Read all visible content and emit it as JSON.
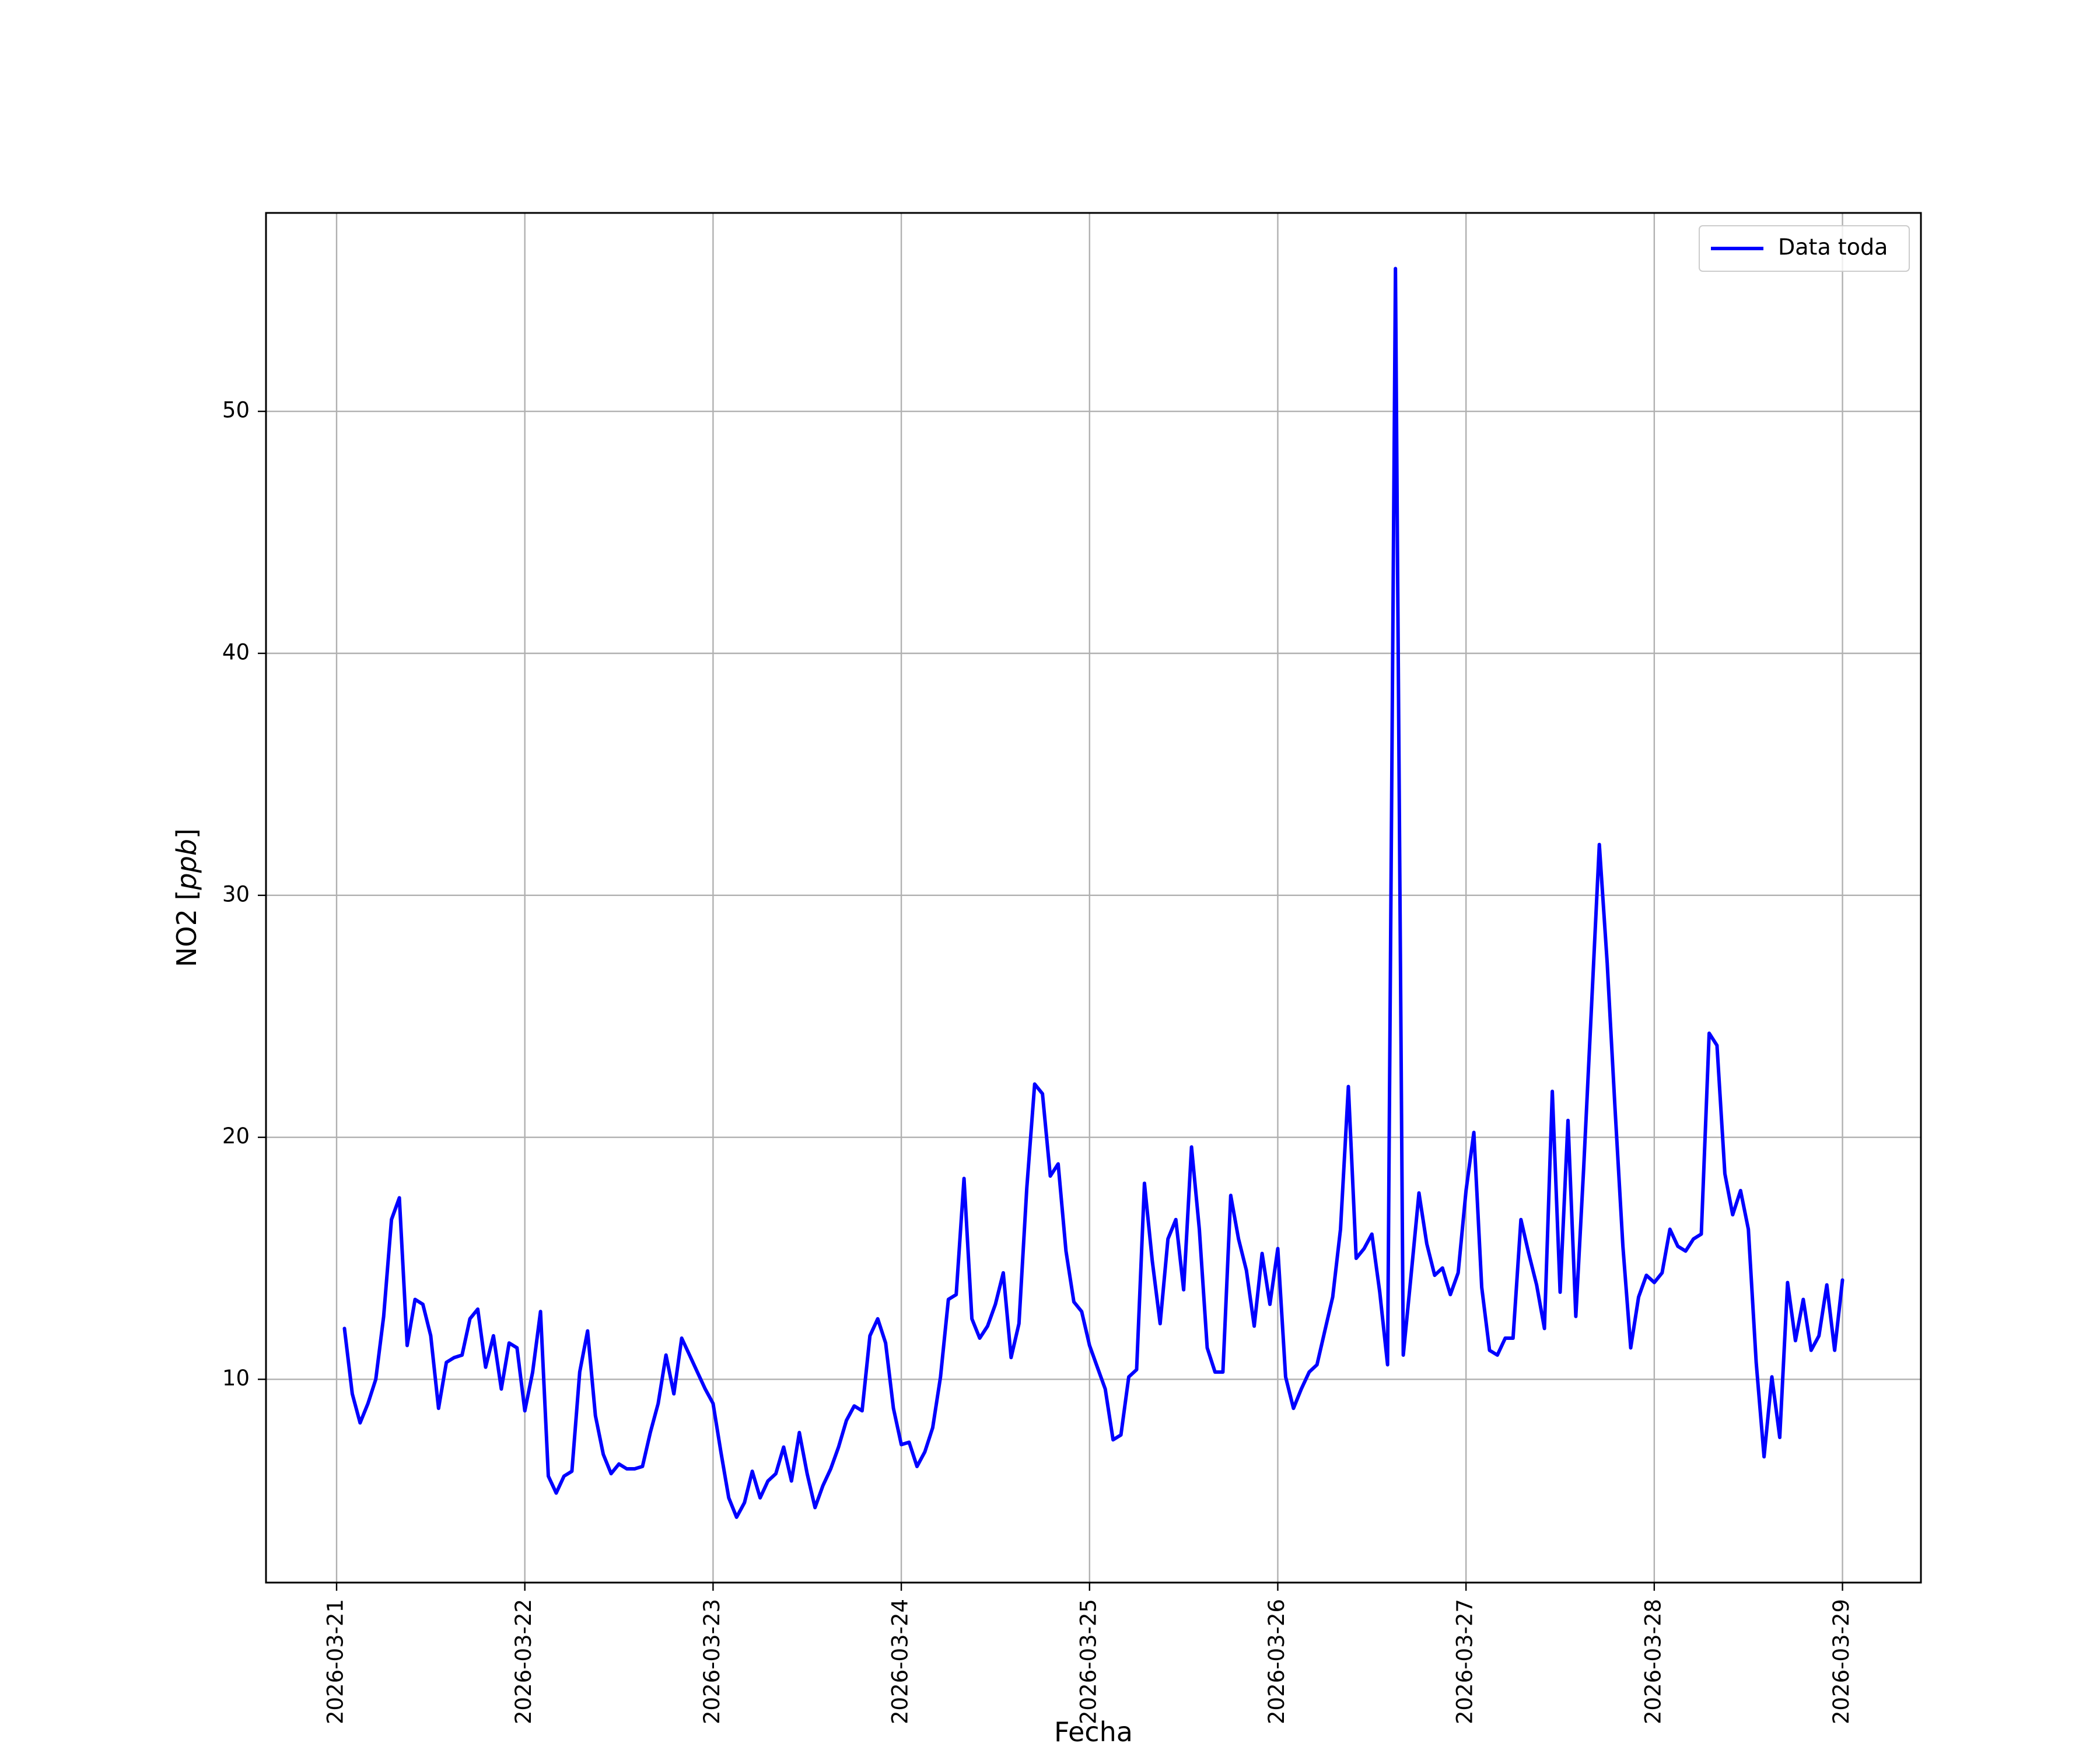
{
  "chart_data": {
    "type": "line",
    "title": "",
    "xlabel": "Fecha",
    "ylabel_prefix": "NO2 [",
    "ylabel_unit": "ppb",
    "ylabel_suffix": "]",
    "x_tick_labels": [
      "2026-03-21",
      "2026-03-22",
      "2026-03-23",
      "2026-03-24",
      "2026-03-25",
      "2026-03-26",
      "2026-03-27",
      "2026-03-28",
      "2026-03-29"
    ],
    "y_ticks": [
      10,
      20,
      30,
      40,
      50
    ],
    "xlim": [
      "2026-03-20 15:00",
      "2026-03-29 10:00"
    ],
    "ylim": [
      1.6,
      58.2
    ],
    "grid": true,
    "legend_position": "top-right",
    "series": [
      {
        "name": "Data toda",
        "color": "#0000ff",
        "x_start": "2026-03-21 01:00",
        "x_step_hours": 1,
        "values": [
          12.1,
          9.4,
          8.2,
          9.0,
          10.0,
          12.6,
          16.6,
          17.5,
          11.4,
          13.3,
          13.1,
          11.8,
          8.8,
          10.7,
          10.9,
          11.0,
          12.5,
          12.9,
          10.5,
          11.8,
          9.6,
          11.5,
          11.3,
          8.7,
          10.3,
          12.8,
          6.0,
          5.3,
          6.0,
          6.2,
          10.3,
          12.0,
          8.5,
          6.9,
          6.1,
          6.5,
          6.3,
          6.3,
          6.4,
          7.8,
          9.0,
          11.0,
          9.4,
          11.7,
          11.0,
          10.3,
          9.6,
          9.0,
          7.0,
          5.1,
          4.3,
          4.9,
          6.2,
          5.1,
          5.8,
          6.1,
          7.2,
          5.8,
          7.8,
          6.1,
          4.7,
          5.6,
          6.3,
          7.2,
          8.3,
          8.9,
          8.7,
          11.8,
          12.5,
          11.5,
          8.8,
          7.3,
          7.4,
          6.4,
          7.0,
          8.0,
          10.1,
          13.3,
          13.5,
          18.3,
          12.5,
          11.7,
          12.2,
          13.1,
          14.4,
          10.9,
          12.3,
          17.9,
          22.2,
          21.8,
          18.4,
          18.9,
          15.3,
          13.2,
          12.8,
          11.4,
          10.5,
          9.6,
          7.5,
          7.7,
          10.1,
          10.4,
          18.1,
          14.9,
          12.3,
          15.8,
          16.6,
          13.7,
          19.6,
          16.2,
          11.3,
          10.3,
          10.3,
          17.6,
          15.8,
          14.5,
          12.2,
          15.2,
          13.1,
          15.4,
          10.1,
          8.8,
          9.6,
          10.3,
          10.6,
          12.0,
          13.4,
          16.2,
          22.1,
          15.0,
          15.4,
          16.0,
          13.6,
          10.6,
          55.9,
          11.0,
          14.3,
          17.7,
          15.6,
          14.3,
          14.6,
          13.5,
          14.4,
          17.8,
          20.2,
          13.8,
          11.2,
          11.0,
          11.7,
          11.7,
          16.6,
          15.2,
          13.9,
          12.1,
          21.9,
          13.6,
          20.7,
          12.6,
          18.7,
          25.4,
          32.1,
          27.2,
          21.2,
          15.5,
          11.3,
          13.4,
          14.3,
          14.0,
          14.4,
          16.2,
          15.5,
          15.3,
          15.8,
          16.0,
          24.3,
          23.8,
          18.5,
          16.8,
          17.8,
          16.2,
          10.7,
          6.8,
          10.1,
          7.6,
          14.0,
          11.6,
          13.3,
          11.2,
          11.8,
          13.9,
          11.2,
          14.1
        ]
      }
    ]
  }
}
